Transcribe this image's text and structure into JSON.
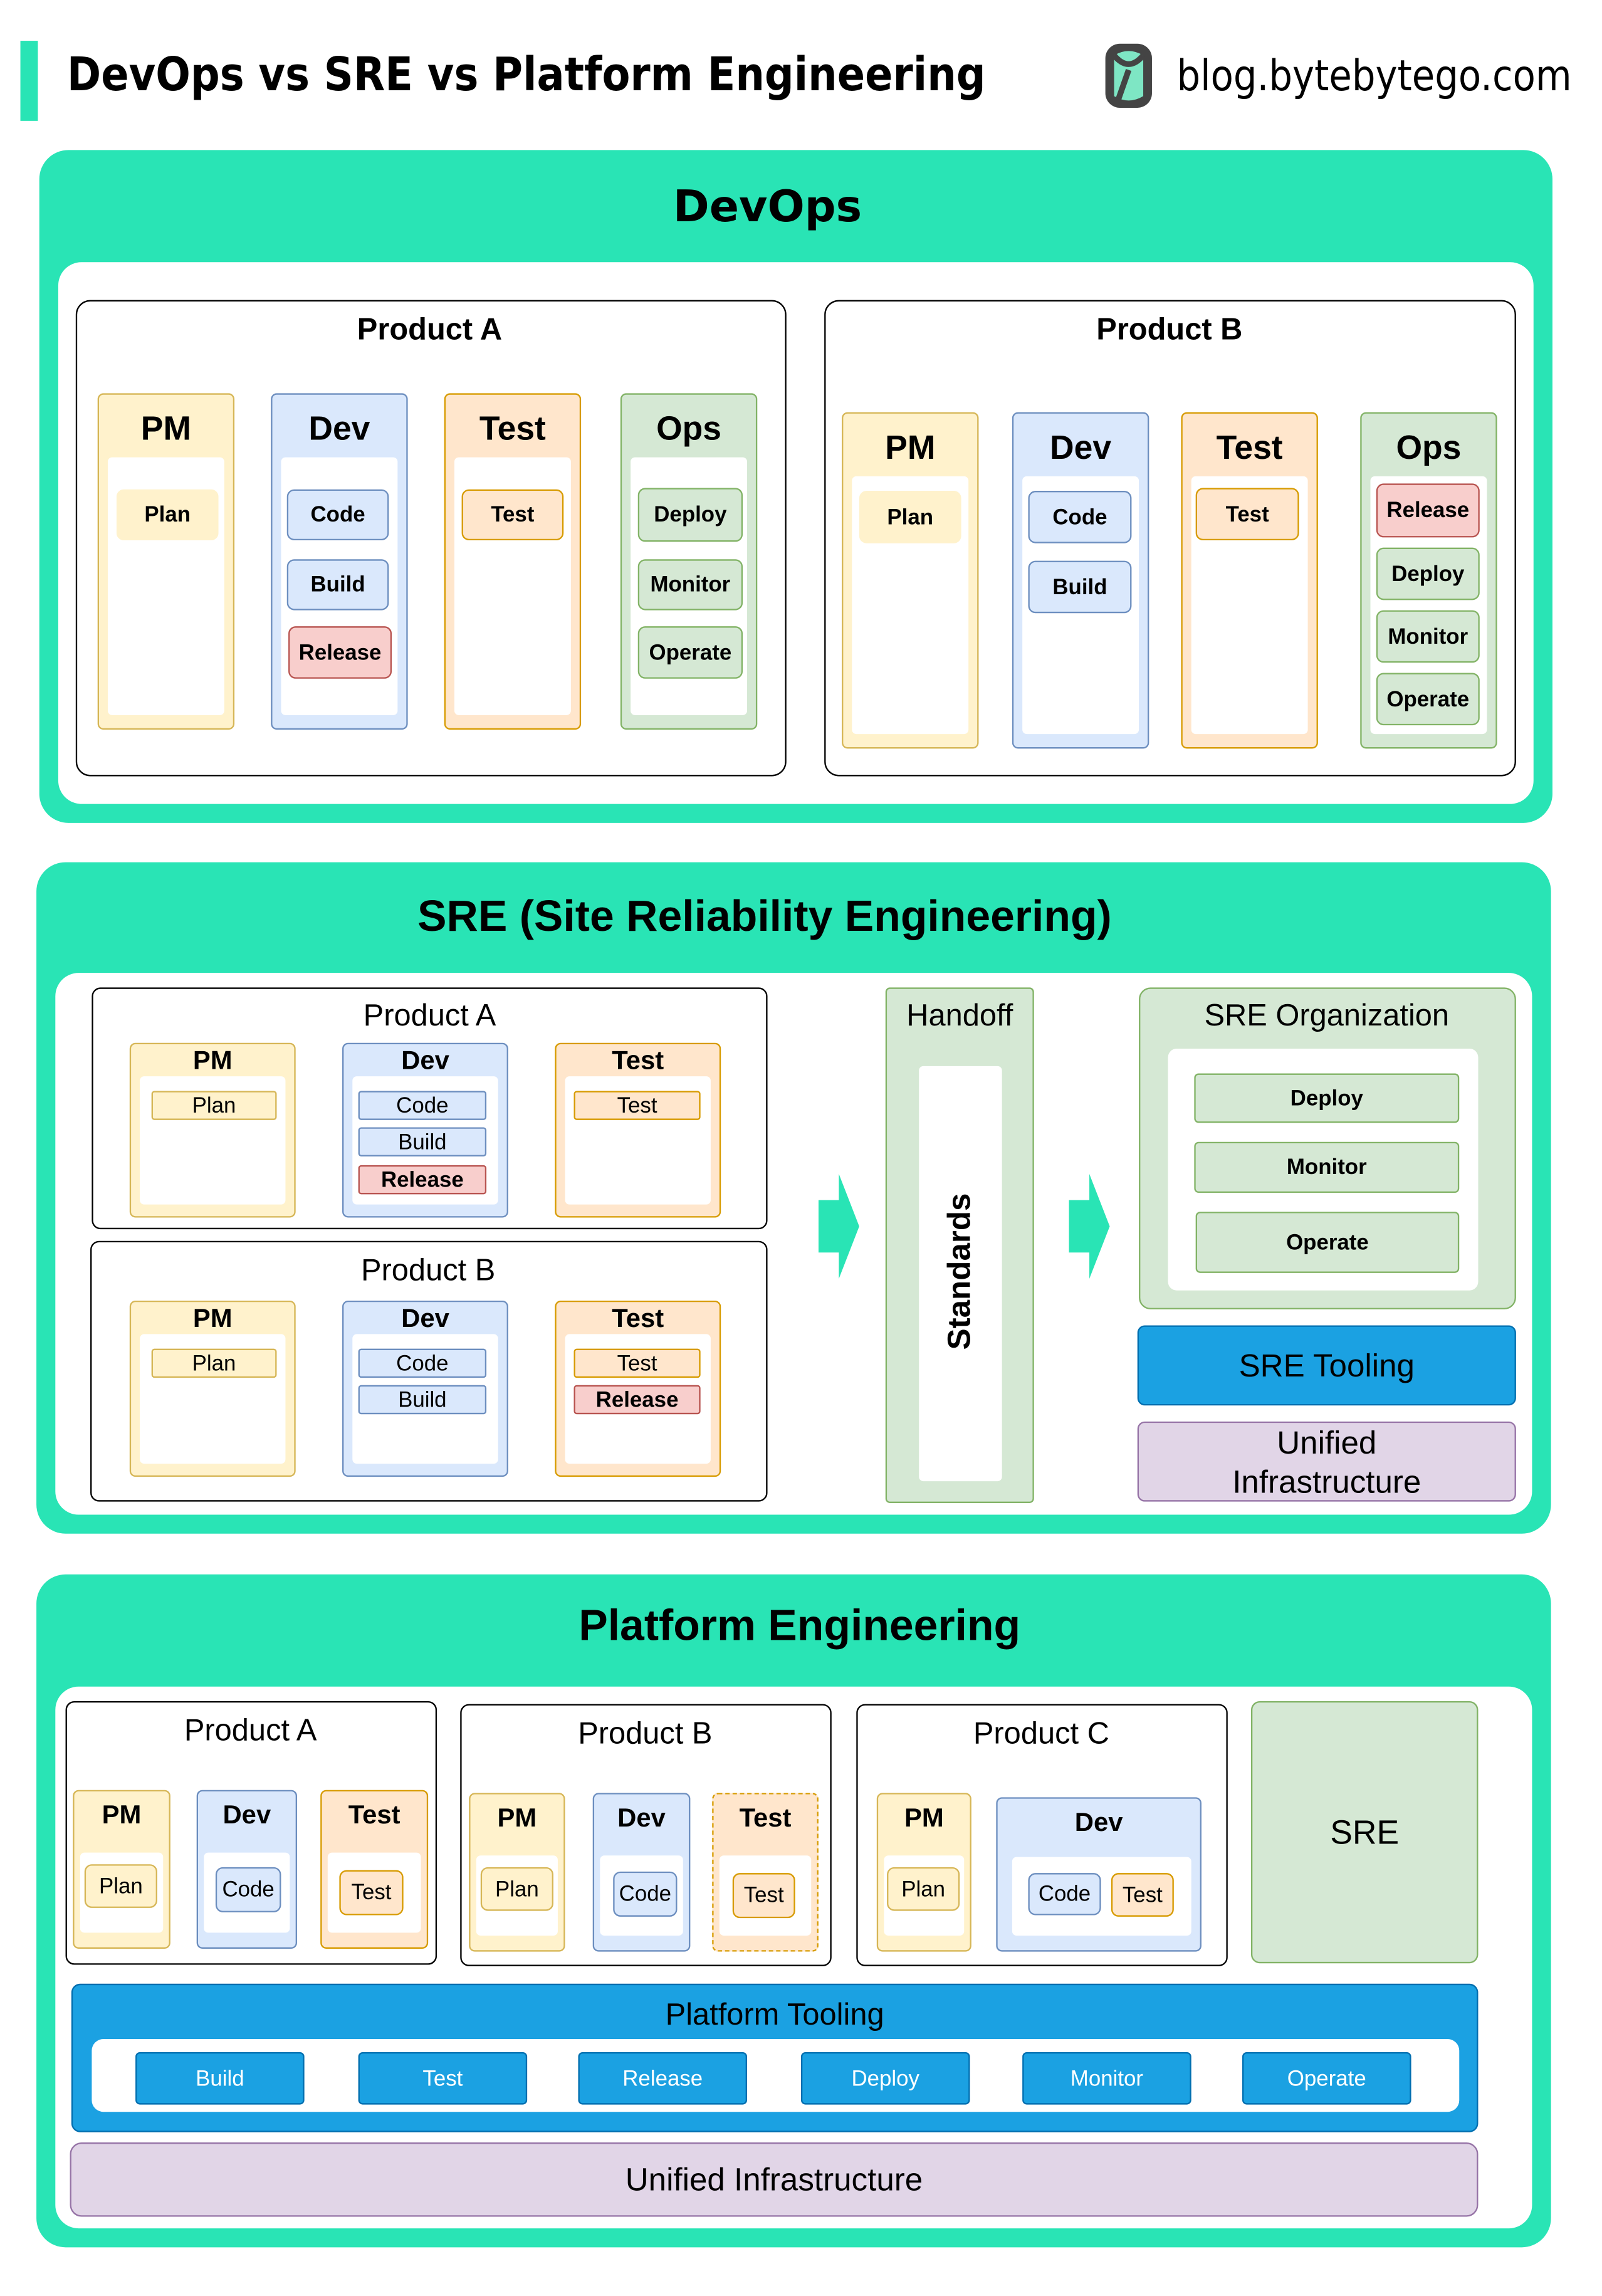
{
  "header": {
    "title": "DevOps vs SRE vs Platform Engineering",
    "site": "blog.bytebytego.com",
    "accent": "#29e4b5"
  },
  "devops": {
    "title": "DevOps",
    "products": [
      {
        "title": "Product A",
        "columns": [
          {
            "label": "PM",
            "items": [
              "Plan"
            ]
          },
          {
            "label": "Dev",
            "items": [
              "Code",
              "Build",
              "Release"
            ]
          },
          {
            "label": "Test",
            "items": [
              "Test"
            ]
          },
          {
            "label": "Ops",
            "items": [
              "Deploy",
              "Monitor",
              "Operate"
            ]
          }
        ]
      },
      {
        "title": "Product B",
        "columns": [
          {
            "label": "PM",
            "items": [
              "Plan"
            ]
          },
          {
            "label": "Dev",
            "items": [
              "Code",
              "Build"
            ]
          },
          {
            "label": "Test",
            "items": [
              "Test"
            ]
          },
          {
            "label": "Ops",
            "items": [
              "Release",
              "Deploy",
              "Monitor",
              "Operate"
            ]
          }
        ]
      }
    ]
  },
  "sre": {
    "title": "SRE (Site Reliability Engineering)",
    "products": [
      {
        "title": "Product A",
        "columns": [
          {
            "label": "PM",
            "items": [
              "Plan"
            ]
          },
          {
            "label": "Dev",
            "items": [
              "Code",
              "Build",
              "Release"
            ]
          },
          {
            "label": "Test",
            "items": [
              "Test"
            ]
          }
        ]
      },
      {
        "title": "Product B",
        "columns": [
          {
            "label": "PM",
            "items": [
              "Plan"
            ]
          },
          {
            "label": "Dev",
            "items": [
              "Code",
              "Build"
            ]
          },
          {
            "label": "Test",
            "items": [
              "Test",
              "Release"
            ]
          }
        ]
      }
    ],
    "handoff": {
      "title": "Handoff",
      "standards": "Standards"
    },
    "org": {
      "title": "SRE Organization",
      "items": [
        "Deploy",
        "Monitor",
        "Operate"
      ]
    },
    "tooling": "SRE Tooling",
    "infra": "Unified Infrastructure"
  },
  "platform": {
    "title": "Platform Engineering",
    "products": [
      {
        "title": "Product A",
        "columns": [
          {
            "label": "PM",
            "items": [
              "Plan"
            ]
          },
          {
            "label": "Dev",
            "items": [
              "Code"
            ]
          },
          {
            "label": "Test",
            "items": [
              "Test"
            ]
          }
        ]
      },
      {
        "title": "Product B",
        "columns": [
          {
            "label": "PM",
            "items": [
              "Plan"
            ]
          },
          {
            "label": "Dev",
            "items": [
              "Code"
            ]
          },
          {
            "label": "Test",
            "items": [
              "Test"
            ]
          }
        ]
      },
      {
        "title": "Product C",
        "columns": [
          {
            "label": "PM",
            "items": [
              "Plan"
            ]
          },
          {
            "label": "Dev",
            "items": [
              "Code",
              "Test"
            ]
          }
        ]
      }
    ],
    "sre": "SRE",
    "tooling": {
      "title": "Platform Tooling",
      "items": [
        "Build",
        "Test",
        "Release",
        "Deploy",
        "Monitor",
        "Operate"
      ]
    },
    "infra": "Unified Infrastructure"
  }
}
